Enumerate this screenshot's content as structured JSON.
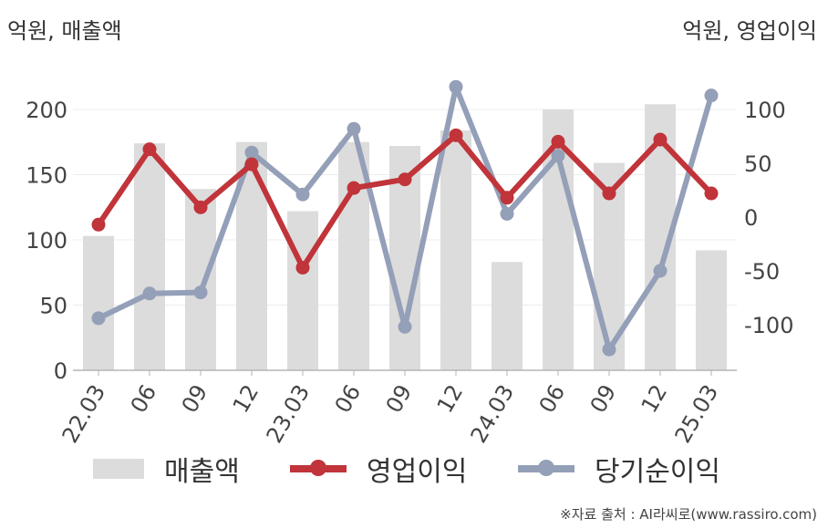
{
  "units": {
    "left": "억원, 매출액",
    "right": "억원, 영업이익"
  },
  "chart_data": {
    "type": "bar+line",
    "categories": [
      "22.03",
      "06",
      "09",
      "12",
      "23.03",
      "06",
      "09",
      "12",
      "24.03",
      "06",
      "09",
      "12",
      "25.03"
    ],
    "series": [
      {
        "name": "매출액",
        "type": "bar",
        "axis": "left",
        "color": "#dcdcdc",
        "values": [
          103,
          174,
          139,
          175,
          122,
          175,
          172,
          184,
          83,
          200,
          159,
          204,
          92
        ]
      },
      {
        "name": "영업이익",
        "type": "line",
        "axis": "right",
        "color": "#c0343a",
        "values": [
          -7,
          63,
          9,
          49,
          -47,
          27,
          35,
          76,
          18,
          70,
          22,
          72,
          22
        ]
      },
      {
        "name": "당기순이익",
        "type": "line",
        "axis": "right",
        "color": "#949fb8",
        "values": [
          -94,
          -71,
          -70,
          60,
          21,
          82,
          -102,
          121,
          3,
          57,
          -123,
          -50,
          113
        ]
      }
    ],
    "y_left": {
      "ylim": [
        0,
        225
      ],
      "ticks": [
        0,
        50,
        100,
        150,
        200
      ]
    },
    "y_right": {
      "ylim": [
        -144,
        144
      ],
      "ticks": [
        -100,
        -50,
        0,
        50,
        100
      ]
    },
    "grid": true,
    "legend_position": "bottom"
  },
  "legend": {
    "revenue": "매출액",
    "operating_profit": "영업이익",
    "net_income": "당기순이익"
  },
  "source": "※자료 출처 : AI라씨로(www.rassiro.com)"
}
